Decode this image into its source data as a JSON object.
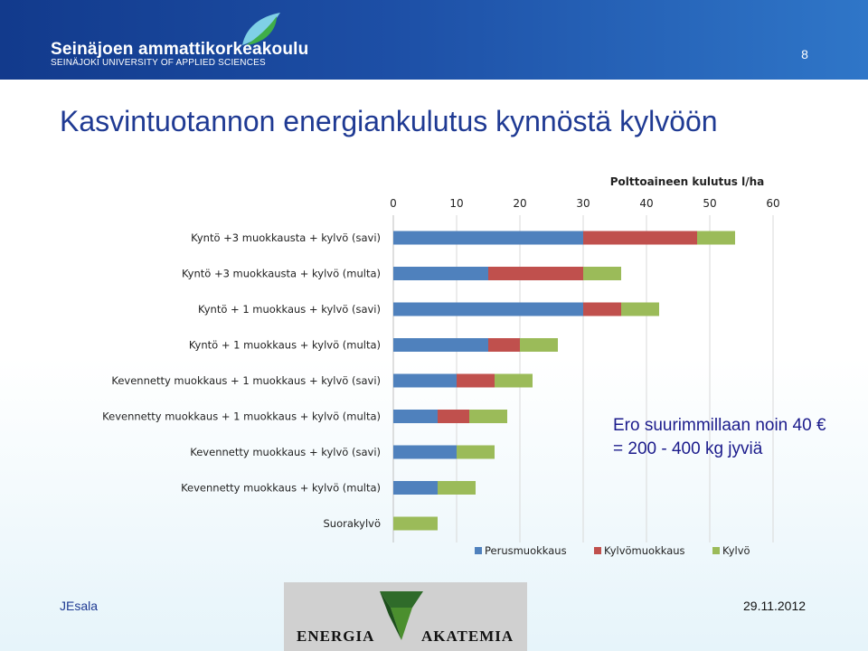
{
  "header": {
    "org_name": "Seinäjoen ammattikorkeakoulu",
    "org_name_en": "SEINÄJOKI UNIVERSITY OF APPLIED SCIENCES",
    "page_number": "8",
    "logo_icon": "leaf-logo-icon"
  },
  "slide": {
    "title": "Kasvintuotannon energiankulutus kynnöstä kylvöön"
  },
  "annotation": {
    "line1": "Ero suurimmillaan noin 40 €",
    "line2": "= 200 - 400 kg jyviä"
  },
  "footer": {
    "author": "JEsala",
    "date": "29.11.2012",
    "logo_left": "ENERGIA",
    "logo_right": "AKATEMIA",
    "logo_icon": "green-arrow-logo-icon"
  },
  "chart_data": {
    "type": "bar",
    "orientation": "horizontal",
    "stacked": true,
    "title": "Polttoaineen kulutus l/ha",
    "xlabel": "",
    "ylabel": "",
    "xlim": [
      0,
      60
    ],
    "x_ticks": [
      0,
      10,
      20,
      30,
      40,
      50,
      60
    ],
    "x_axis_position": "top",
    "grid": true,
    "legend_position": "bottom",
    "categories": [
      "Kyntö +3 muokkausta + kylvö (savi)",
      "Kyntö +3 muokkausta + kylvö (multa)",
      "Kyntö + 1 muokkaus + kylvö (savi)",
      "Kyntö + 1 muokkaus + kylvö (multa)",
      "Kevennetty muokkaus + 1 muokkaus + kylvö (savi)",
      "Kevennetty muokkaus + 1 muokkaus + kylvö (multa)",
      "Kevennetty muokkaus + kylvö (savi)",
      "Kevennetty muokkaus + kylvö (multa)",
      "Suorakylvö"
    ],
    "series": [
      {
        "name": "Perusmuokkaus",
        "color": "#4f81bd",
        "values": [
          30,
          15,
          30,
          15,
          10,
          7,
          10,
          7,
          0
        ]
      },
      {
        "name": "Kylvömuokkaus",
        "color": "#c0504d",
        "values": [
          18,
          15,
          6,
          5,
          6,
          5,
          0,
          0,
          0
        ]
      },
      {
        "name": "Kylvö",
        "color": "#9bbb59",
        "values": [
          6,
          6,
          6,
          6,
          6,
          6,
          6,
          6,
          7
        ]
      }
    ]
  }
}
